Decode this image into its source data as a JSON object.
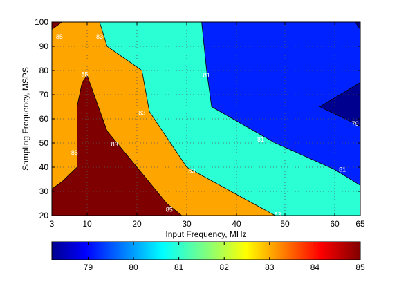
{
  "chart_data": {
    "type": "contour",
    "title": "",
    "xlabel": "Input Frequency, MHz",
    "ylabel": "Sampling Frequency, MSPS",
    "x_ticks": [
      3,
      10,
      20,
      30,
      40,
      50,
      60,
      65
    ],
    "y_ticks": [
      20,
      30,
      40,
      50,
      60,
      70,
      80,
      90,
      100
    ],
    "xlim": [
      3,
      65
    ],
    "ylim": [
      20,
      100
    ],
    "grid": "dotted",
    "colorbar": {
      "location": "bottom",
      "range": [
        78.2,
        85
      ],
      "ticks": [
        79,
        80,
        81,
        82,
        83,
        84,
        85
      ],
      "colormap": "jet"
    },
    "levels": [
      {
        "name": "85",
        "color": "#7f0000"
      },
      {
        "name": "83",
        "color": "#ffa500"
      },
      {
        "name": "81",
        "color": "#2bffd4"
      },
      {
        "name": "79",
        "color": "#0022ff"
      },
      {
        "name": "<79",
        "color": "#00008f"
      }
    ],
    "regions": [
      {
        "level": "83",
        "polygon": [
          [
            3,
            20
          ],
          [
            65,
            20
          ],
          [
            65,
            100
          ],
          [
            3,
            100
          ]
        ]
      },
      {
        "level": "81",
        "polygon": [
          [
            12.5,
            100
          ],
          [
            65,
            100
          ],
          [
            65,
            20
          ],
          [
            48,
            20
          ],
          [
            30,
            40
          ],
          [
            22.5,
            63
          ],
          [
            21,
            80
          ],
          [
            14,
            90
          ]
        ]
      },
      {
        "level": "79",
        "polygon": [
          [
            33,
            100
          ],
          [
            65,
            100
          ],
          [
            65,
            32.5
          ],
          [
            60,
            39
          ],
          [
            48,
            50
          ],
          [
            35,
            65
          ],
          [
            34,
            80
          ]
        ]
      },
      {
        "level": "<79",
        "polygon": [
          [
            65,
            75
          ],
          [
            65,
            57
          ],
          [
            57,
            65
          ]
        ]
      },
      {
        "level": "<79",
        "polygon": [
          [
            64,
            100
          ],
          [
            65,
            100
          ],
          [
            65,
            97
          ]
        ]
      },
      {
        "level": "85",
        "polygon": [
          [
            5,
            100
          ],
          [
            3,
            97
          ],
          [
            3,
            100
          ]
        ]
      },
      {
        "level": "85",
        "polygon": [
          [
            3,
            20
          ],
          [
            29,
            20
          ],
          [
            26,
            25
          ],
          [
            20,
            40
          ],
          [
            14,
            55
          ],
          [
            10,
            78
          ],
          [
            9,
            75
          ],
          [
            8,
            65
          ],
          [
            8,
            40
          ],
          [
            5,
            34
          ],
          [
            3,
            31
          ]
        ]
      }
    ],
    "contour_labels": [
      {
        "text": "85",
        "x": 4.5,
        "y": 94
      },
      {
        "text": "83",
        "x": 12.5,
        "y": 94
      },
      {
        "text": "85",
        "x": 9.5,
        "y": 78.5
      },
      {
        "text": "85",
        "x": 7.5,
        "y": 46
      },
      {
        "text": "83",
        "x": 15.5,
        "y": 49.5
      },
      {
        "text": "83",
        "x": 21,
        "y": 62.5
      },
      {
        "text": "81",
        "x": 34,
        "y": 78
      },
      {
        "text": "81",
        "x": 45,
        "y": 51.5
      },
      {
        "text": "83",
        "x": 31,
        "y": 38.5
      },
      {
        "text": "85",
        "x": 26.5,
        "y": 22.5
      },
      {
        "text": "83",
        "x": 48.5,
        "y": 20.5
      },
      {
        "text": "79",
        "x": 64,
        "y": 58
      },
      {
        "text": "81",
        "x": 61.5,
        "y": 39
      }
    ]
  }
}
